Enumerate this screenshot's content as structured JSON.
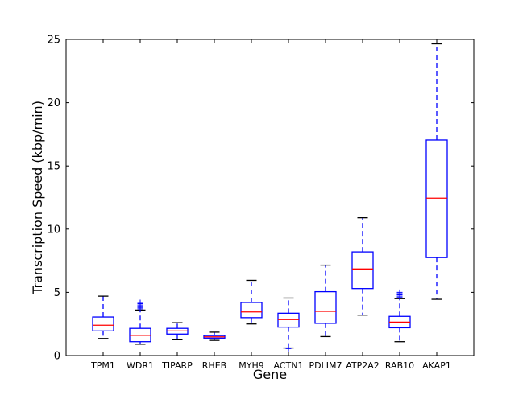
{
  "chart_data": {
    "type": "box",
    "title": "",
    "xlabel": "Gene",
    "ylabel": "Transcription Speed (kbp/min)",
    "ylim": [
      0,
      25
    ],
    "yticks": [
      0,
      5,
      10,
      15,
      20,
      25
    ],
    "grid": false,
    "categories": [
      "TPM1",
      "WDR1",
      "TIPARP",
      "RHEB",
      "MYH9",
      "ACTN1",
      "PDLIM7",
      "ATP2A2",
      "RAB10",
      "AKAP1"
    ],
    "boxes": [
      {
        "name": "TPM1",
        "whisker_low": 1.35,
        "q1": 1.95,
        "median": 2.4,
        "q3": 3.05,
        "whisker_high": 4.7,
        "outliers": []
      },
      {
        "name": "WDR1",
        "whisker_low": 0.9,
        "q1": 1.1,
        "median": 1.6,
        "q3": 2.15,
        "whisker_high": 3.6,
        "outliers": [
          3.7,
          3.8,
          3.9,
          4.0,
          4.1,
          4.2
        ]
      },
      {
        "name": "TIPARP",
        "whisker_low": 1.25,
        "q1": 1.7,
        "median": 1.95,
        "q3": 2.15,
        "whisker_high": 2.6,
        "outliers": []
      },
      {
        "name": "RHEB",
        "whisker_low": 1.2,
        "q1": 1.38,
        "median": 1.48,
        "q3": 1.58,
        "whisker_high": 1.85,
        "outliers": []
      },
      {
        "name": "MYH9",
        "whisker_low": 2.5,
        "q1": 3.0,
        "median": 3.45,
        "q3": 4.2,
        "whisker_high": 5.95,
        "outliers": []
      },
      {
        "name": "ACTN1",
        "whisker_low": 0.6,
        "q1": 2.25,
        "median": 2.85,
        "q3": 3.35,
        "whisker_high": 4.55,
        "outliers": [
          0.55
        ]
      },
      {
        "name": "PDLIM7",
        "whisker_low": 1.5,
        "q1": 2.55,
        "median": 3.5,
        "q3": 5.05,
        "whisker_high": 7.15,
        "outliers": []
      },
      {
        "name": "ATP2A2",
        "whisker_low": 3.2,
        "q1": 5.3,
        "median": 6.85,
        "q3": 8.2,
        "whisker_high": 10.9,
        "outliers": []
      },
      {
        "name": "RAB10",
        "whisker_low": 1.1,
        "q1": 2.2,
        "median": 2.65,
        "q3": 3.1,
        "whisker_high": 4.5,
        "outliers": [
          4.6,
          4.7,
          4.8,
          4.9,
          5.0
        ]
      },
      {
        "name": "AKAP1",
        "whisker_low": 4.45,
        "q1": 7.75,
        "median": 12.45,
        "q3": 17.05,
        "whisker_high": 24.65,
        "outliers": []
      }
    ],
    "colors": {
      "box": "#0000ff",
      "median": "#ff0000",
      "whisker": "#0000ff",
      "cap": "#000000",
      "outlier": "#0000ff",
      "axes": "#000000"
    }
  }
}
